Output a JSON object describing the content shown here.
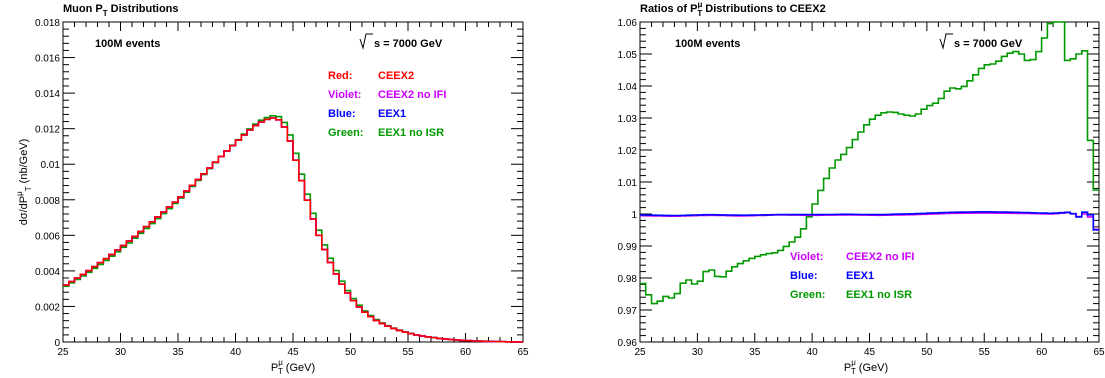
{
  "chart_data": [
    {
      "type": "line",
      "title_main": "Muon P",
      "title_sub": "T",
      "title_tail": " Distributions",
      "ylabel": "dσ/dP",
      "ylabel_sup": "μ",
      "ylabel_sub": "T",
      "ylabel_unit": " (nb/GeV)",
      "xlabel_main": "P",
      "xlabel_sup": "μ",
      "xlabel_sub": "T",
      "xlabel_unit": " (GeV)",
      "xlim": [
        25,
        65
      ],
      "ylim": [
        0,
        0.018
      ],
      "x_ticks": [
        "25",
        "30",
        "35",
        "40",
        "45",
        "50",
        "55",
        "60",
        "65"
      ],
      "y_ticks": [
        "0",
        "0.002",
        "0.004",
        "0.006",
        "0.008",
        "0.01",
        "0.012",
        "0.014",
        "0.016",
        "0.018"
      ],
      "events_label": "100M events",
      "energy_label": "s = 7000 GeV",
      "legend": [
        {
          "key": "Red:",
          "name": "CEEX2",
          "color": "#ff0000"
        },
        {
          "key": "Violet:",
          "name": "CEEX2 no IFI",
          "color": "#cc00ff"
        },
        {
          "key": "Blue:",
          "name": "EEX1",
          "color": "#0000ff"
        },
        {
          "key": "Green:",
          "name": "EEX1 no ISR",
          "color": "#009900"
        }
      ],
      "series": [
        {
          "name": "CEEX2",
          "color": "#ff0000",
          "x": [
            25,
            27,
            29,
            31,
            33,
            35,
            37,
            39,
            41,
            42,
            43,
            43.5,
            44,
            44.5,
            45,
            46,
            47,
            48,
            49,
            50,
            51,
            52,
            53,
            54,
            55,
            56,
            57,
            58,
            59,
            60,
            61,
            62,
            63,
            64,
            65
          ],
          "values": [
            0.0031,
            0.0039,
            0.0048,
            0.0058,
            0.0069,
            0.008,
            0.0093,
            0.0106,
            0.0118,
            0.0123,
            0.0126,
            0.0126,
            0.0124,
            0.0118,
            0.0108,
            0.0085,
            0.0064,
            0.0048,
            0.0035,
            0.0025,
            0.0018,
            0.0013,
            0.00095,
            0.0007,
            0.0005,
            0.00036,
            0.00026,
            0.00018,
            0.00012,
            8e-05,
            5e-05,
            3e-05,
            2e-05,
            1e-05,
            0.0
          ]
        },
        {
          "name": "CEEX2 no IFI",
          "color": "#cc00ff",
          "x": [
            25,
            27,
            29,
            31,
            33,
            35,
            37,
            39,
            41,
            42,
            43,
            43.5,
            44,
            44.5,
            45,
            46,
            47,
            48,
            49,
            50,
            51,
            52,
            53,
            54,
            55,
            56,
            57,
            58,
            59,
            60,
            61,
            62,
            63,
            64,
            65
          ],
          "values": [
            0.0031,
            0.0039,
            0.0048,
            0.0058,
            0.0069,
            0.008,
            0.0093,
            0.0106,
            0.0118,
            0.0123,
            0.0126,
            0.0126,
            0.0124,
            0.0118,
            0.0108,
            0.0085,
            0.0064,
            0.0048,
            0.0035,
            0.0025,
            0.0018,
            0.0013,
            0.00095,
            0.0007,
            0.0005,
            0.00036,
            0.00026,
            0.00018,
            0.00012,
            8e-05,
            5e-05,
            3e-05,
            2e-05,
            1e-05,
            0.0
          ]
        },
        {
          "name": "EEX1",
          "color": "#0000ff",
          "x": [
            25,
            27,
            29,
            31,
            33,
            35,
            37,
            39,
            41,
            42,
            43,
            43.5,
            44,
            44.5,
            45,
            46,
            47,
            48,
            49,
            50,
            51,
            52,
            53,
            54,
            55,
            56,
            57,
            58,
            59,
            60,
            61,
            62,
            63,
            64,
            65
          ],
          "values": [
            0.0031,
            0.0039,
            0.0048,
            0.0058,
            0.0069,
            0.008,
            0.0093,
            0.0106,
            0.0118,
            0.0123,
            0.0126,
            0.0126,
            0.0124,
            0.0118,
            0.0108,
            0.0085,
            0.0064,
            0.0048,
            0.0035,
            0.0025,
            0.0018,
            0.0013,
            0.00095,
            0.0007,
            0.0005,
            0.00036,
            0.00026,
            0.00018,
            0.00012,
            8e-05,
            5e-05,
            3e-05,
            2e-05,
            1e-05,
            0.0
          ]
        },
        {
          "name": "EEX1 no ISR",
          "color": "#009900",
          "x": [
            25,
            27,
            29,
            31,
            33,
            35,
            37,
            39,
            41,
            42,
            43,
            43.5,
            44,
            44.5,
            45,
            46,
            47,
            48,
            49,
            50,
            51,
            52,
            53,
            54,
            55,
            56,
            57,
            58,
            59,
            60,
            61,
            62,
            63,
            64,
            65
          ],
          "values": [
            0.00304,
            0.00381,
            0.0047,
            0.0057,
            0.0068,
            0.00793,
            0.00925,
            0.0106,
            0.01185,
            0.0124,
            0.0127,
            0.01275,
            0.0126,
            0.0121,
            0.0112,
            0.00885,
            0.0067,
            0.00505,
            0.00368,
            0.00263,
            0.00188,
            0.00135,
            0.00098,
            0.00072,
            0.00052,
            0.00037,
            0.00027,
            0.00019,
            0.00013,
            9e-05,
            6e-05,
            4e-05,
            2e-05,
            1e-05,
            0.0
          ]
        }
      ]
    },
    {
      "type": "line",
      "title_main": "Ratios of P",
      "title_sup": "μ",
      "title_sub": "T",
      "title_tail": " Distributions to CEEX2",
      "xlabel_main": "P",
      "xlabel_sup": "μ",
      "xlabel_sub": "T",
      "xlabel_unit": " (GeV)",
      "xlim": [
        25,
        65
      ],
      "ylim": [
        0.96,
        1.06
      ],
      "x_ticks": [
        "25",
        "30",
        "35",
        "40",
        "45",
        "50",
        "55",
        "60",
        "65"
      ],
      "y_ticks": [
        "0.96",
        "0.97",
        "0.98",
        "0.99",
        "1",
        "1.01",
        "1.02",
        "1.03",
        "1.04",
        "1.05",
        "1.06"
      ],
      "events_label": "100M events",
      "energy_label": "s = 7000 GeV",
      "legend": [
        {
          "key": "Violet:",
          "name": "CEEX2 no IFI",
          "color": "#cc00ff"
        },
        {
          "key": "Blue:",
          "name": "EEX1",
          "color": "#0000ff"
        },
        {
          "key": "Green:",
          "name": "EEX1 no ISR",
          "color": "#009900"
        }
      ],
      "series": [
        {
          "name": "CEEX2 no IFI",
          "color": "#cc00ff",
          "x": [
            25,
            28,
            31,
            34,
            37,
            40,
            43,
            46,
            49,
            52,
            55,
            58,
            61,
            62.5,
            63.5,
            64,
            64.5,
            65
          ],
          "values": [
            0.9995,
            0.9993,
            0.9996,
            0.9994,
            0.9997,
            0.9996,
            0.9997,
            0.9996,
            0.9998,
            1.0002,
            1.0003,
            1.0002,
            1.0,
            1.0005,
            0.9988,
            1.0012,
            0.997,
            0.9935
          ]
        },
        {
          "name": "EEX1",
          "color": "#0000ff",
          "x": [
            25,
            28,
            31,
            34,
            37,
            40,
            43,
            46,
            49,
            52,
            55,
            58,
            61,
            62.5,
            63.5,
            64,
            64.5,
            65
          ],
          "values": [
            0.9997,
            0.9995,
            0.9998,
            0.9996,
            0.9998,
            0.9998,
            0.9999,
            0.9998,
            1.0001,
            1.0005,
            1.0007,
            1.0005,
            1.0002,
            1.0006,
            0.9986,
            1.0025,
            0.997,
            0.993
          ]
        },
        {
          "name": "EEX1 no ISR",
          "color": "#009900",
          "x": [
            25,
            25.5,
            26,
            26.5,
            27,
            28,
            29,
            30,
            31,
            32,
            33,
            34,
            35,
            36,
            37,
            38,
            39,
            40,
            41,
            42,
            43,
            44,
            45,
            46,
            47,
            48,
            49,
            50,
            51,
            52,
            53,
            54,
            55,
            56,
            57,
            58,
            59,
            60,
            60.5,
            61,
            61.5,
            62,
            62.5,
            63,
            63.5,
            64,
            64.5,
            65
          ],
          "values": [
            0.98,
            0.9765,
            0.973,
            0.971,
            0.9745,
            0.9735,
            0.98,
            0.9775,
            0.9835,
            0.9795,
            0.983,
            0.985,
            0.9865,
            0.9875,
            0.988,
            0.9905,
            0.9935,
            1.001,
            1.0095,
            1.016,
            1.0195,
            1.0245,
            1.029,
            1.0315,
            1.032,
            1.031,
            1.0305,
            1.0335,
            1.035,
            1.0395,
            1.039,
            1.0425,
            1.0465,
            1.047,
            1.05,
            1.051,
            1.047,
            1.052,
            1.058,
            1.061,
            1.062,
            1.058,
            1.038,
            1.059,
            1.041,
            1.061,
            0.985,
            1.03
          ]
        }
      ]
    }
  ]
}
